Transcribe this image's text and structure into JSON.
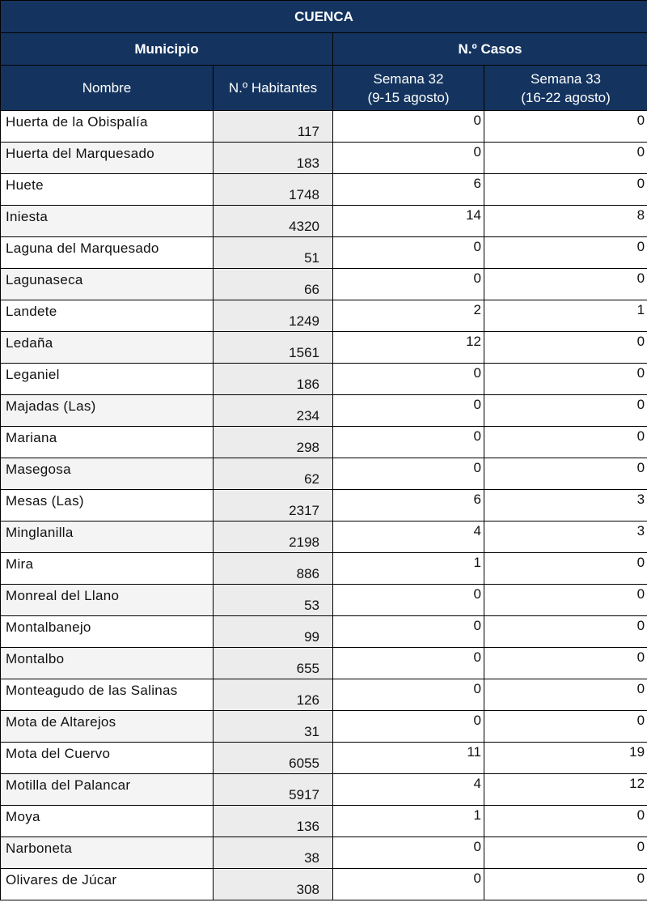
{
  "title": "CUENCA",
  "groups": {
    "municipio": "Municipio",
    "casos": "N.º Casos"
  },
  "columns": {
    "nombre": "Nombre",
    "habitantes": "N.º Habitantes",
    "s32": "Semana 32",
    "s32_range": "(9-15 agosto)",
    "s33": "Semana 33",
    "s33_range": "(16-22 agosto)"
  },
  "rows": [
    [
      "Huerta de la Obispalía",
      "117",
      "0",
      "0"
    ],
    [
      "Huerta del Marquesado",
      "183",
      "0",
      "0"
    ],
    [
      "Huete",
      "1748",
      "6",
      "0"
    ],
    [
      "Iniesta",
      "4320",
      "14",
      "8"
    ],
    [
      "Laguna del Marquesado",
      "51",
      "0",
      "0"
    ],
    [
      "Lagunaseca",
      "66",
      "0",
      "0"
    ],
    [
      "Landete",
      "1249",
      "2",
      "1"
    ],
    [
      "Ledaña",
      "1561",
      "12",
      "0"
    ],
    [
      "Leganiel",
      "186",
      "0",
      "0"
    ],
    [
      "Majadas (Las)",
      "234",
      "0",
      "0"
    ],
    [
      "Mariana",
      "298",
      "0",
      "0"
    ],
    [
      "Masegosa",
      "62",
      "0",
      "0"
    ],
    [
      "Mesas (Las)",
      "2317",
      "6",
      "3"
    ],
    [
      "Minglanilla",
      "2198",
      "4",
      "3"
    ],
    [
      "Mira",
      "886",
      "1",
      "0"
    ],
    [
      "Monreal del Llano",
      "53",
      "0",
      "0"
    ],
    [
      "Montalbanejo",
      "99",
      "0",
      "0"
    ],
    [
      "Montalbo",
      "655",
      "0",
      "0"
    ],
    [
      "Monteagudo de las Salinas",
      "126",
      "0",
      "0"
    ],
    [
      "Mota de Altarejos",
      "31",
      "0",
      "0"
    ],
    [
      "Mota del Cuervo",
      "6055",
      "11",
      "19"
    ],
    [
      "Motilla del Palancar",
      "5917",
      "4",
      "12"
    ],
    [
      "Moya",
      "136",
      "1",
      "0"
    ],
    [
      "Narboneta",
      "38",
      "0",
      "0"
    ],
    [
      "Olivares de Júcar",
      "308",
      "0",
      "0"
    ]
  ],
  "colors": {
    "header": "#14345f",
    "habitantes_bg": "#ececec"
  }
}
